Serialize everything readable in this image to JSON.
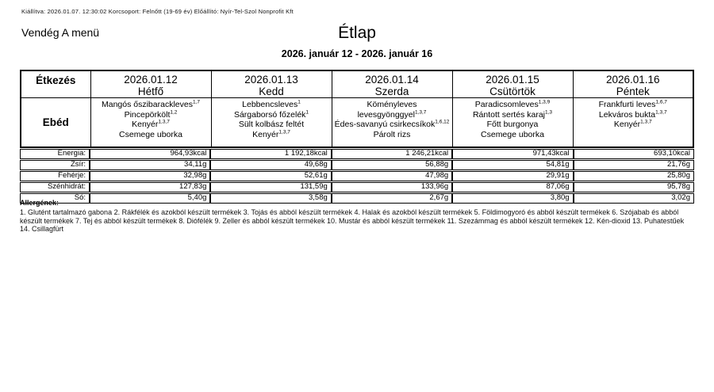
{
  "meta_line": "Kiállítva: 2026.01.07. 12:30:02 Korcsoport: Felnőtt (19-69 év) Előállító: Nyír-Tel-Szol Nonprofit Kft",
  "menu_name": "Vendég A menü",
  "title": "Étlap",
  "date_range": "2026. január 12 - 2026. január 16",
  "table": {
    "corner_header": "Étkezés",
    "meal_row_label": "Ebéd",
    "days": [
      {
        "date": "2026.01.12",
        "day": "Hétfő",
        "items": [
          {
            "name": "Mangós őszibarackleves",
            "allergens": "1,7"
          },
          {
            "name": "Pincepörkölt",
            "allergens": "1,2"
          },
          {
            "name": "Kenyér",
            "allergens": "1,3,7"
          },
          {
            "name": "Csemege uborka",
            "allergens": ""
          }
        ]
      },
      {
        "date": "2026.01.13",
        "day": "Kedd",
        "items": [
          {
            "name": "Lebbencsleves",
            "allergens": "1"
          },
          {
            "name": "Sárgaborsó főzelék",
            "allergens": "1"
          },
          {
            "name": "Sült kolbász feltét",
            "allergens": ""
          },
          {
            "name": "Kenyér",
            "allergens": "1,3,7"
          }
        ]
      },
      {
        "date": "2026.01.14",
        "day": "Szerda",
        "items": [
          {
            "name": "Köményleves levesgyönggyel",
            "allergens": "1,3,7"
          },
          {
            "name": "Édes-savanyú csirkecsíkok",
            "allergens": "1,6,12"
          },
          {
            "name": "Párolt rizs",
            "allergens": ""
          }
        ]
      },
      {
        "date": "2026.01.15",
        "day": "Csütörtök",
        "items": [
          {
            "name": "Paradicsomleves",
            "allergens": "1,3,9"
          },
          {
            "name": "Rántott sertés karaj",
            "allergens": "1,3"
          },
          {
            "name": "Főtt burgonya",
            "allergens": ""
          },
          {
            "name": "Csemege uborka",
            "allergens": ""
          }
        ]
      },
      {
        "date": "2026.01.16",
        "day": "Péntek",
        "items": [
          {
            "name": "Frankfurti leves",
            "allergens": "1,6,7"
          },
          {
            "name": "Lekváros bukta",
            "allergens": "1,3,7"
          },
          {
            "name": "Kenyér",
            "allergens": "1,3,7"
          }
        ]
      }
    ],
    "nutrition_rows": [
      {
        "label": "Energia:",
        "values": [
          "964,93kcal",
          "1 192,18kcal",
          "1 246,21kcal",
          "971,43kcal",
          "693,10kcal"
        ]
      },
      {
        "label": "Zsír:",
        "values": [
          "34,11g",
          "49,68g",
          "56,88g",
          "54,81g",
          "21,76g"
        ]
      },
      {
        "label": "Fehérje:",
        "values": [
          "32,98g",
          "52,61g",
          "47,98g",
          "29,91g",
          "25,80g"
        ]
      },
      {
        "label": "Szénhidrát:",
        "values": [
          "127,83g",
          "131,59g",
          "133,96g",
          "87,06g",
          "95,78g"
        ]
      },
      {
        "label": "Só:",
        "values": [
          "5,40g",
          "3,58g",
          "2,67g",
          "3,80g",
          "3,02g"
        ]
      }
    ]
  },
  "allergens": {
    "heading": "Allergének:",
    "text": "1. Glutént tartalmazó gabona 2. Rákfélék és azokból készült termékek 3. Tojás és abból készült termékek 4. Halak és azokból készült termékek 5. Földimogyoró és abból készült termékek 6. Szójabab és abból készült termékek 7. Tej és abból készült termékek 8. Diófélék 9. Zeller és abból készült termékek 10. Mustár és abból készült termékek 11. Szezámmag és abból készült termékek 12. Kén-dioxid 13. Puhatestűek 14. Csillagfürt"
  }
}
